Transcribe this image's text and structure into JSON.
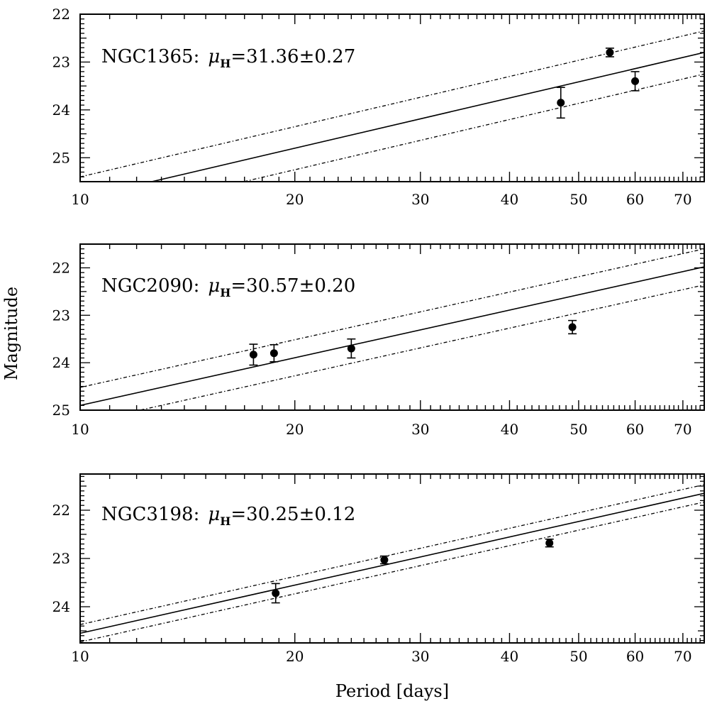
{
  "chart_data": {
    "type": "scatter",
    "xlabel": "Period [days]",
    "ylabel": "Magnitude",
    "xscale": "log",
    "xlim": [
      10,
      75
    ],
    "xticks": [
      10,
      20,
      30,
      40,
      50,
      60,
      70
    ],
    "xtick_labels": [
      "10",
      "20",
      "30",
      "40",
      "50",
      "60",
      "70"
    ],
    "panels": [
      {
        "galaxy": "NGC1365",
        "mu_symbol": "μ",
        "mu_subscript": "H",
        "mu_value": "=31.36±0.27",
        "ylim": [
          25.5,
          22.0
        ],
        "yticks": [
          22,
          23,
          24,
          25
        ],
        "ytick_labels": [
          "22",
          "23",
          "24",
          "25"
        ],
        "fit": {
          "p1": 10,
          "m1": 25.85,
          "p2": 75,
          "m2": 22.8
        },
        "band_offset": 0.45,
        "points": [
          {
            "period": 47.2,
            "mag": 23.85,
            "err": 0.32
          },
          {
            "period": 55.3,
            "mag": 22.8,
            "err": 0.09
          },
          {
            "period": 60.0,
            "mag": 23.4,
            "err": 0.2
          }
        ]
      },
      {
        "galaxy": "NGC2090",
        "mu_symbol": "μ",
        "mu_subscript": "H",
        "mu_value": "=30.57±0.20",
        "ylim": [
          25.0,
          21.5
        ],
        "yticks": [
          22,
          23,
          24,
          25
        ],
        "ytick_labels": [
          "22",
          "23",
          "24",
          "25"
        ],
        "fit": {
          "p1": 10,
          "m1": 24.9,
          "p2": 75,
          "m2": 21.98
        },
        "band_offset": 0.38,
        "points": [
          {
            "period": 17.5,
            "mag": 23.83,
            "err": 0.22
          },
          {
            "period": 18.7,
            "mag": 23.8,
            "err": 0.18
          },
          {
            "period": 24.0,
            "mag": 23.7,
            "err": 0.2
          },
          {
            "period": 49.0,
            "mag": 23.25,
            "err": 0.14
          }
        ]
      },
      {
        "galaxy": "NGC3198",
        "mu_symbol": "μ",
        "mu_subscript": "H",
        "mu_value": "=30.25±0.12",
        "ylim": [
          24.75,
          21.25
        ],
        "yticks": [
          22,
          23,
          24
        ],
        "ytick_labels": [
          "22",
          "23",
          "24"
        ],
        "fit": {
          "p1": 10,
          "m1": 24.55,
          "p2": 75,
          "m2": 21.65
        },
        "band_offset": 0.18,
        "points": [
          {
            "period": 18.8,
            "mag": 23.72,
            "err": 0.2
          },
          {
            "period": 26.7,
            "mag": 23.03,
            "err": 0.08
          },
          {
            "period": 45.5,
            "mag": 22.68,
            "err": 0.08
          }
        ]
      }
    ]
  }
}
